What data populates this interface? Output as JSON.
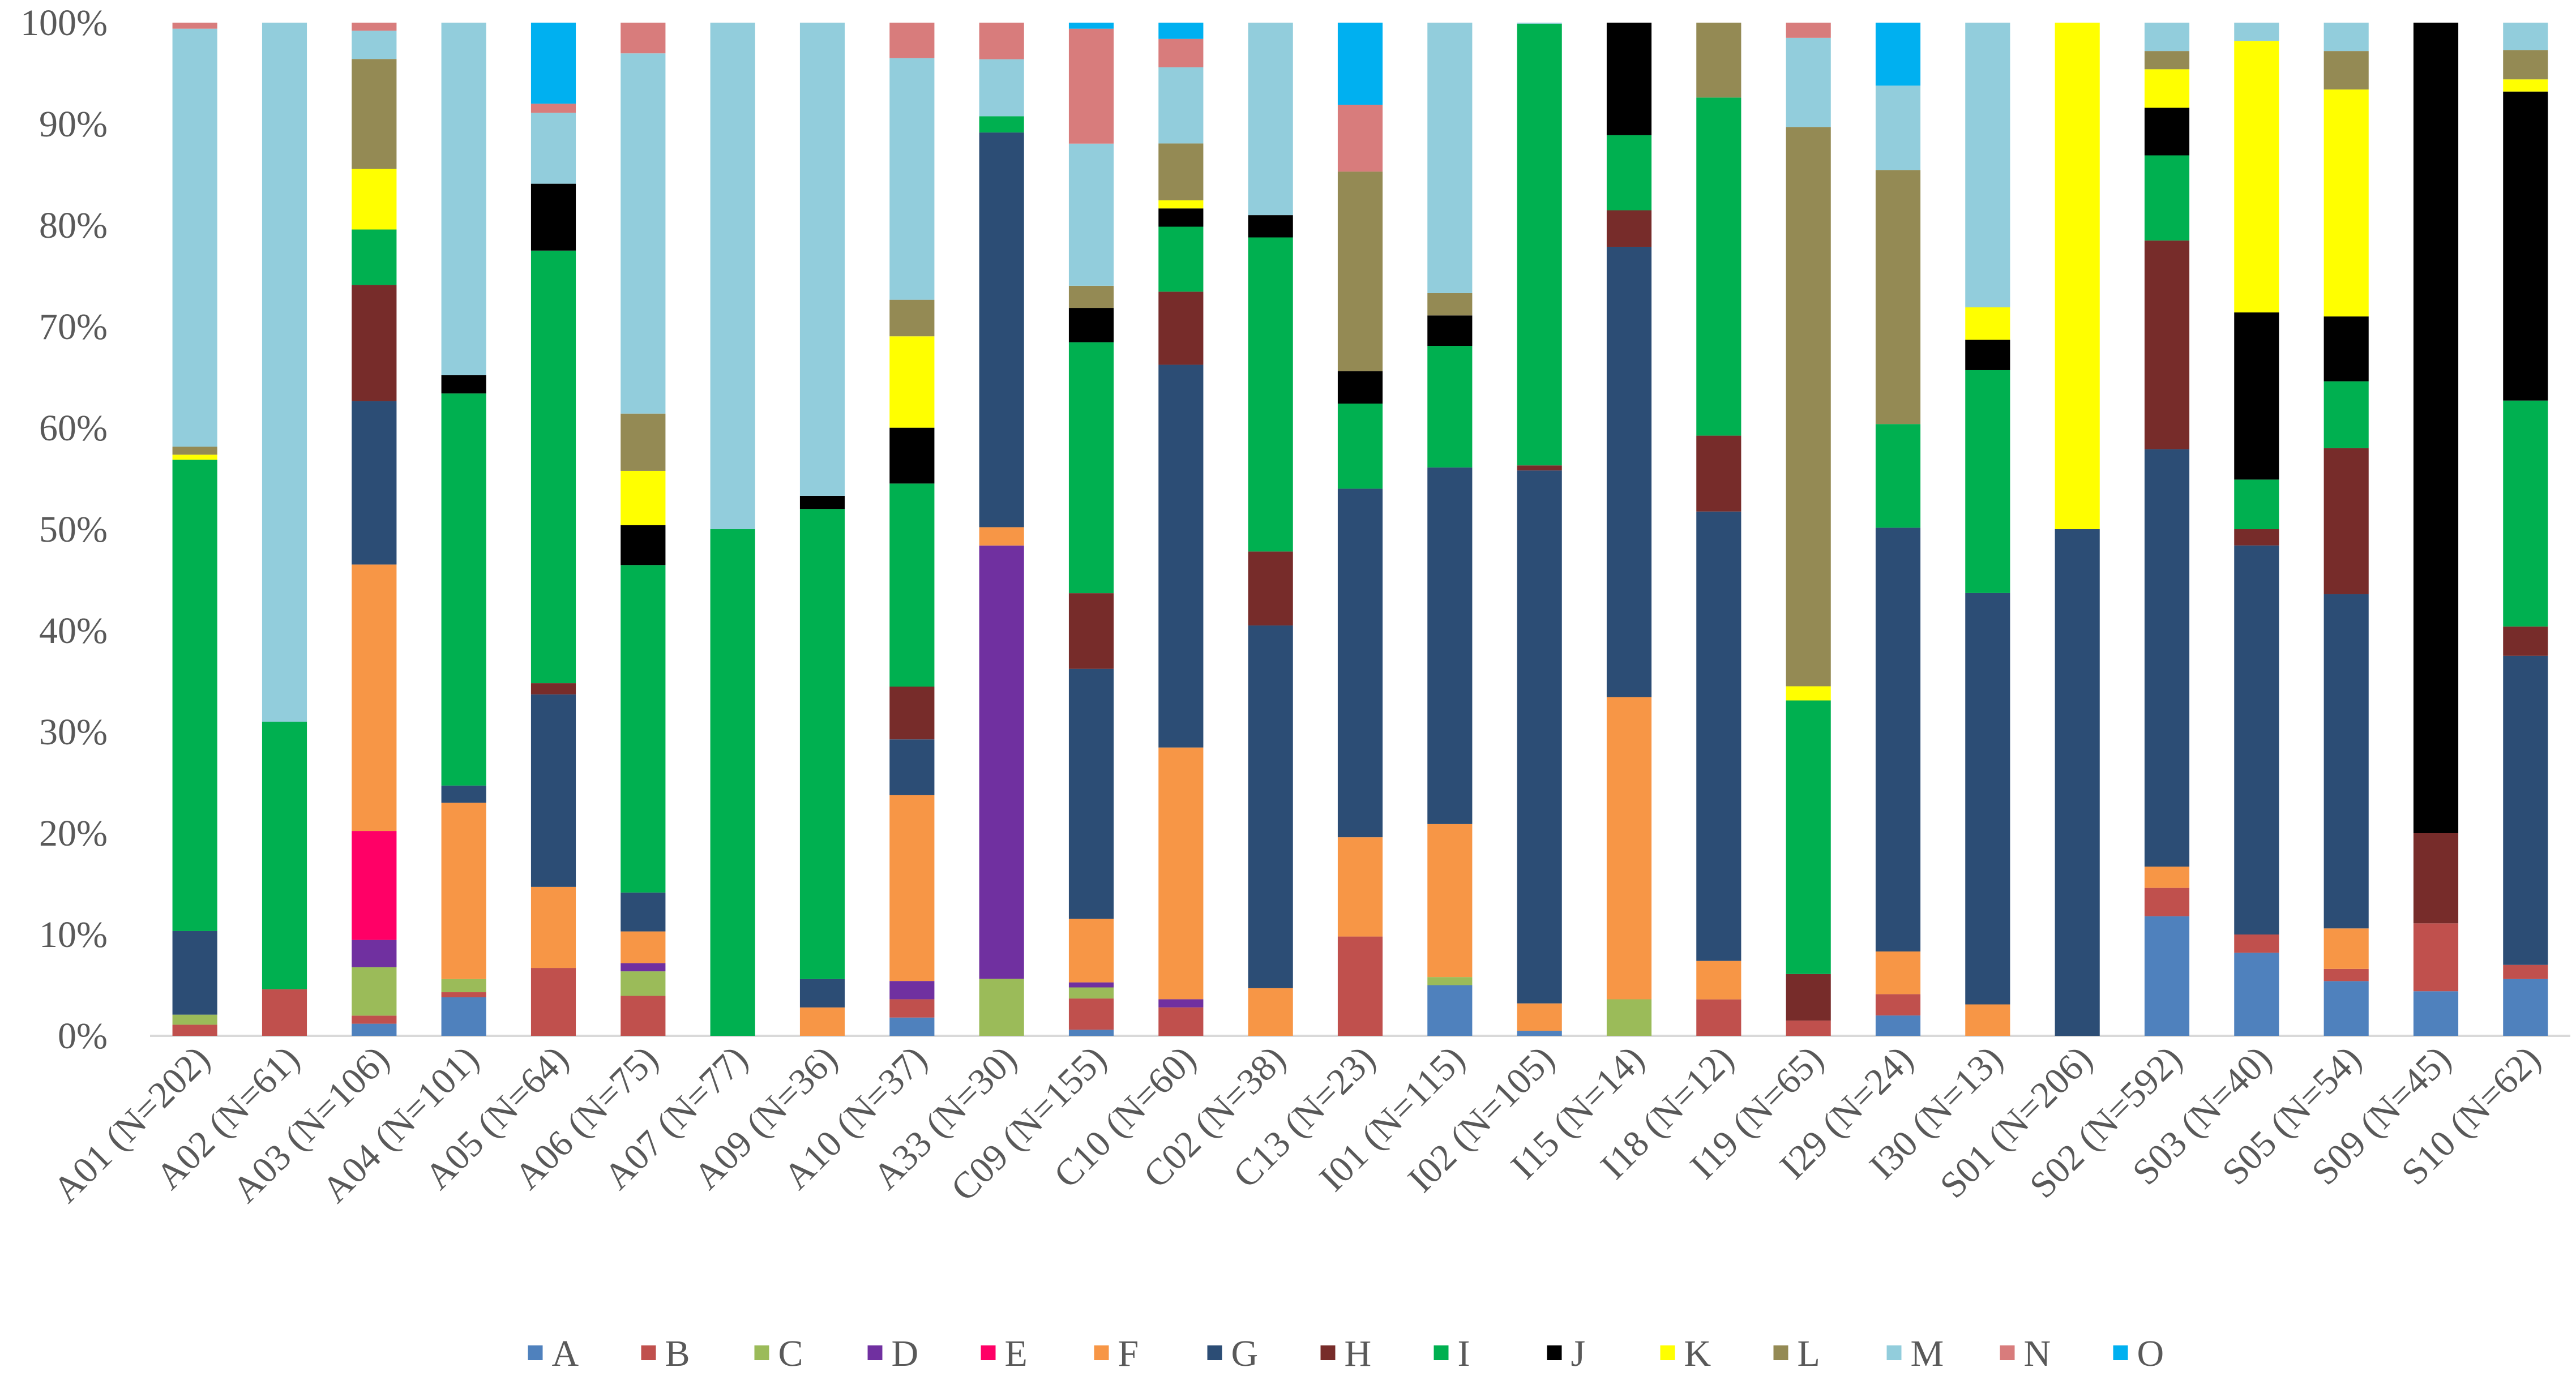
{
  "chart_data": {
    "type": "bar",
    "stacked": true,
    "percent_stacked": true,
    "title": "",
    "xlabel": "",
    "ylabel": "",
    "ylim": [
      0,
      100
    ],
    "yticks": [
      "0%",
      "10%",
      "20%",
      "30%",
      "40%",
      "50%",
      "60%",
      "70%",
      "80%",
      "90%",
      "100%"
    ],
    "grid": false,
    "legend_position": "bottom",
    "categories": [
      "A01 (N=202)",
      "A02 (N=61)",
      "A03 (N=106)",
      "A04 (N=101)",
      "A05 (N=64)",
      "A06 (N=75)",
      "A07 (N=77)",
      "A09 (N=36)",
      "A10 (N=37)",
      "A33 (N=30)",
      "C09 (N=155)",
      "C10 (N=60)",
      "C02 (N=38)",
      "C13 (N=23)",
      "I01 (N=115)",
      "I02 (N=105)",
      "I15 (N=14)",
      "I18 (N=12)",
      "I19 (N=65)",
      "I29 (N=24)",
      "I30 (N=13)",
      "S01 (N=206)",
      "S02 (N=592)",
      "S03 (N=40)",
      "S05 (N=54)",
      "S09 (N=45)",
      "S10 (N=62)"
    ],
    "series": [
      {
        "name": "A",
        "color": "#4f81bd",
        "values": [
          0,
          0,
          1.2,
          3.8,
          0,
          0,
          0,
          0,
          1.8,
          0,
          0.6,
          0,
          0,
          0,
          5.0,
          0.5,
          0,
          0,
          0,
          2.0,
          0,
          0,
          11.8,
          8.2,
          5.4,
          4.4,
          5.6
        ]
      },
      {
        "name": "B",
        "color": "#c0504d",
        "values": [
          1.1,
          4.6,
          0.8,
          0.5,
          6.7,
          3.9,
          0,
          0,
          1.8,
          0,
          3.1,
          2.8,
          0,
          9.8,
          0,
          0,
          0,
          3.6,
          1.5,
          2.1,
          0,
          0,
          2.8,
          1.8,
          1.2,
          6.7,
          1.4
        ]
      },
      {
        "name": "C",
        "color": "#9bbb59",
        "values": [
          1.0,
          0,
          4.8,
          1.3,
          0,
          2.4,
          0,
          0,
          0,
          5.6,
          1.1,
          0,
          0,
          0,
          0.8,
          0,
          3.6,
          0,
          0,
          0,
          0,
          0,
          0,
          0,
          0,
          0,
          0
        ]
      },
      {
        "name": "D",
        "color": "#7030a0",
        "values": [
          0,
          0,
          2.7,
          0,
          0,
          0.8,
          0,
          0,
          1.8,
          42.6,
          0.5,
          0.8,
          0,
          0,
          0,
          0,
          0,
          0,
          0,
          0,
          0,
          0,
          0,
          0,
          0,
          0,
          0
        ]
      },
      {
        "name": "E",
        "color": "#ff0066",
        "values": [
          0,
          0,
          10.8,
          0,
          0,
          0,
          0,
          0,
          0,
          0,
          0,
          0,
          0,
          0,
          0,
          0,
          0,
          0,
          0,
          0,
          0,
          0,
          0,
          0,
          0,
          0,
          0
        ]
      },
      {
        "name": "F",
        "color": "#f79646",
        "values": [
          0,
          0,
          26.4,
          17.4,
          8.0,
          3.1,
          0,
          2.8,
          18.3,
          1.8,
          6.3,
          24.8,
          4.7,
          9.8,
          15.1,
          2.7,
          29.8,
          3.8,
          0,
          4.2,
          3.1,
          0,
          2.1,
          0,
          4.0,
          0,
          0
        ]
      },
      {
        "name": "G",
        "color": "#2c4d75",
        "values": [
          8.3,
          0,
          16.2,
          1.7,
          19.0,
          3.8,
          0,
          2.8,
          5.5,
          38.8,
          24.8,
          37.7,
          35.8,
          34.4,
          35.2,
          52.6,
          44.4,
          44.4,
          0,
          41.7,
          40.6,
          50.0,
          41.2,
          38.4,
          33.0,
          0,
          30.5
        ]
      },
      {
        "name": "H",
        "color": "#772c2a",
        "values": [
          0,
          0,
          11.5,
          0,
          1.1,
          0,
          0,
          0,
          5.2,
          0,
          7.5,
          7.2,
          7.3,
          0,
          0,
          0.5,
          3.6,
          7.5,
          4.6,
          0,
          0,
          0,
          20.6,
          1.6,
          14.4,
          8.9,
          2.9
        ]
      },
      {
        "name": "I",
        "color": "#00b050",
        "values": [
          46.8,
          26.4,
          5.5,
          38.7,
          42.7,
          32.0,
          50.0,
          46.4,
          20.0,
          1.6,
          24.9,
          6.4,
          31.0,
          8.4,
          12.0,
          43.6,
          7.4,
          33.4,
          27.0,
          10.2,
          22.0,
          0,
          8.4,
          4.9,
          6.6,
          0,
          22.3
        ]
      },
      {
        "name": "J",
        "color": "#000000",
        "values": [
          0,
          0,
          0,
          1.8,
          6.6,
          3.9,
          0,
          1.3,
          5.5,
          0,
          3.4,
          1.8,
          2.2,
          3.2,
          3.0,
          0,
          11.1,
          0,
          0,
          0,
          3.0,
          0,
          4.7,
          16.5,
          6.4,
          80.0,
          30.5
        ]
      },
      {
        "name": "K",
        "color": "#ffff00",
        "values": [
          0.5,
          0,
          6.0,
          0,
          0,
          5.3,
          0,
          0,
          9.0,
          0,
          0,
          0.8,
          0,
          0,
          0,
          0,
          0,
          0,
          1.4,
          0,
          3.2,
          50.0,
          3.8,
          26.8,
          22.4,
          0,
          1.2
        ]
      },
      {
        "name": "L",
        "color": "#948a54",
        "values": [
          0.8,
          0,
          10.9,
          0,
          0,
          5.6,
          0,
          0,
          3.6,
          0,
          2.2,
          5.6,
          0,
          19.7,
          2.2,
          0,
          0,
          7.4,
          55.2,
          25.0,
          0,
          0,
          1.8,
          0,
          3.8,
          0,
          2.9
        ]
      },
      {
        "name": "M",
        "color": "#92cddc",
        "values": [
          41.5,
          69.0,
          2.8,
          34.8,
          7.0,
          35.2,
          50.0,
          46.7,
          23.8,
          5.6,
          14.1,
          7.5,
          19.0,
          0,
          26.7,
          0.1,
          0,
          0,
          8.8,
          8.3,
          28.1,
          0,
          2.8,
          1.8,
          2.8,
          0,
          2.7
        ]
      },
      {
        "name": "N",
        "color": "#d87c7c",
        "values": [
          0.6,
          0,
          0.8,
          0,
          0.9,
          3.0,
          0,
          0,
          3.5,
          3.6,
          11.4,
          2.8,
          0,
          6.6,
          0,
          0,
          0,
          0,
          1.5,
          0,
          0,
          0,
          0,
          0,
          0,
          0,
          0
        ]
      },
      {
        "name": "O",
        "color": "#00b0f0",
        "values": [
          0,
          0,
          0,
          0,
          8.0,
          0,
          0,
          0,
          0,
          0,
          0.6,
          1.6,
          0,
          8.1,
          0,
          0,
          0,
          0,
          0,
          6.2,
          0,
          0,
          0,
          0,
          0,
          0,
          0
        ]
      }
    ]
  }
}
